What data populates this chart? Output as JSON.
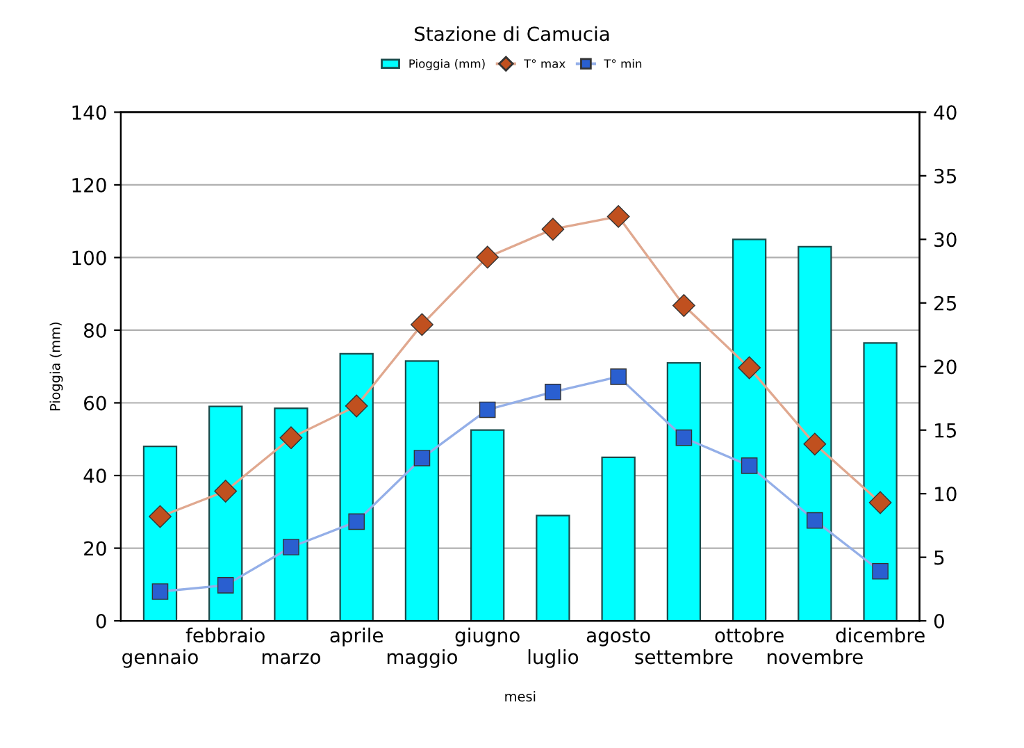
{
  "chart_data": {
    "type": "bar",
    "title": "Stazione di Camucia",
    "xlabel": "mesi",
    "ylabel": "Pioggia (mm)",
    "categories": [
      "gennaio",
      "febbraio",
      "marzo",
      "aprile",
      "maggio",
      "giugno",
      "luglio",
      "agosto",
      "settembre",
      "ottobre",
      "novembre",
      "dicembre"
    ],
    "series": [
      {
        "name": "Pioggia (mm)",
        "color": "#00ffff",
        "values": [
          48,
          59,
          58.5,
          73.5,
          71.5,
          52.5,
          29,
          45,
          71,
          105,
          103,
          76.5
        ]
      },
      {
        "name": "T° max",
        "type": "line",
        "axis": "y2",
        "color": "#c0501f",
        "marker": "diamond",
        "values": [
          8.2,
          10.2,
          14.4,
          16.9,
          23.3,
          28.6,
          30.8,
          31.8,
          24.8,
          19.9,
          13.9,
          9.3
        ]
      },
      {
        "name": "T° min",
        "type": "line",
        "axis": "y2",
        "color": "#2a5fd0",
        "marker": "square",
        "values": [
          2.3,
          2.8,
          5.8,
          7.8,
          12.8,
          16.6,
          18.0,
          19.2,
          14.4,
          12.2,
          7.9,
          3.9
        ]
      }
    ],
    "ylim": [
      0,
      140
    ],
    "yticks": [
      0,
      20,
      40,
      60,
      80,
      100,
      120,
      140
    ],
    "y2lim": [
      0,
      40
    ],
    "y2ticks": [
      0,
      5,
      10,
      15,
      20,
      25,
      30,
      35,
      40
    ],
    "grid": "y",
    "legend": "top"
  }
}
